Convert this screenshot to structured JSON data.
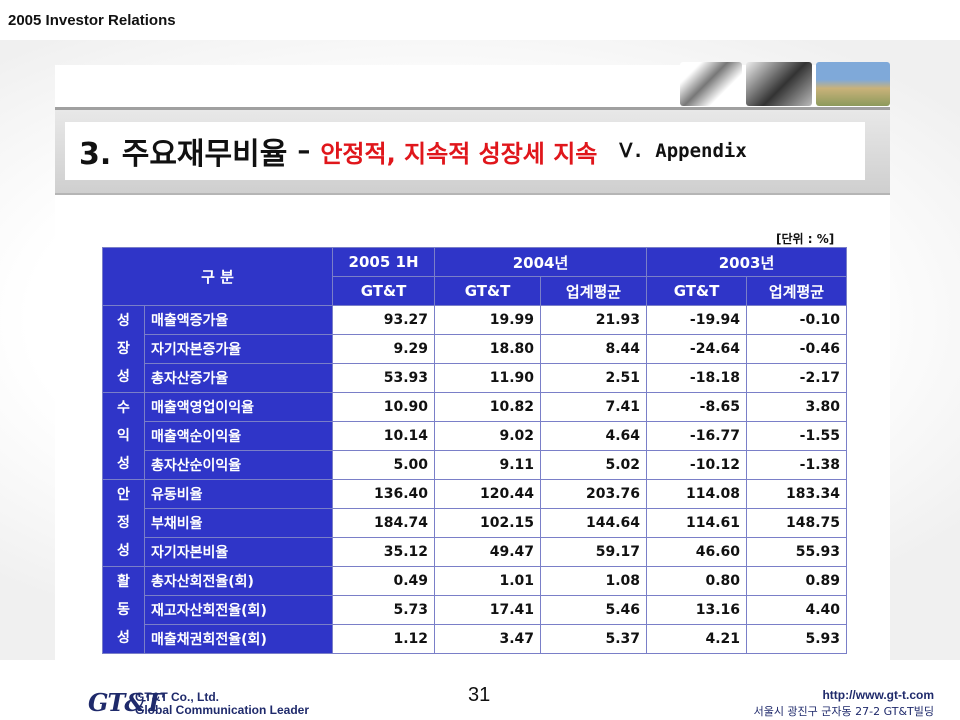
{
  "header": {
    "label": "2005 Investor Relations"
  },
  "title": {
    "main": "3. 주요재무비율",
    "dash": "–",
    "sub": "안정적, 지속적 성장세 지속",
    "appendix": "Ⅴ. Appendix"
  },
  "unit": "[단위 : %]",
  "table": {
    "header": {
      "division": "구   분",
      "periods": [
        "2005 1H",
        "2004년",
        "2003년"
      ],
      "sub_cols": [
        "GT&T",
        "GT&T",
        "업계평균",
        "GT&T",
        "업계평균"
      ]
    },
    "groups": [
      {
        "category": "성장성",
        "rows": [
          {
            "item": "매출액증가율",
            "values": [
              "93.27",
              "19.99",
              "21.93",
              "-19.94",
              "-0.10"
            ]
          },
          {
            "item": "자기자본증가율",
            "values": [
              "9.29",
              "18.80",
              "8.44",
              "-24.64",
              "-0.46"
            ]
          },
          {
            "item": "총자산증가율",
            "values": [
              "53.93",
              "11.90",
              "2.51",
              "-18.18",
              "-2.17"
            ]
          }
        ]
      },
      {
        "category": "수익성",
        "rows": [
          {
            "item": "매출액영업이익율",
            "values": [
              "10.90",
              "10.82",
              "7.41",
              "-8.65",
              "3.80"
            ]
          },
          {
            "item": "매출액순이익율",
            "values": [
              "10.14",
              "9.02",
              "4.64",
              "-16.77",
              "-1.55"
            ]
          },
          {
            "item": "총자산순이익율",
            "values": [
              "5.00",
              "9.11",
              "5.02",
              "-10.12",
              "-1.38"
            ]
          }
        ]
      },
      {
        "category": "안정성",
        "rows": [
          {
            "item": "유동비율",
            "values": [
              "136.40",
              "120.44",
              "203.76",
              "114.08",
              "183.34"
            ]
          },
          {
            "item": "부채비율",
            "values": [
              "184.74",
              "102.15",
              "144.64",
              "114.61",
              "148.75"
            ]
          },
          {
            "item": "자기자본비율",
            "values": [
              "35.12",
              "49.47",
              "59.17",
              "46.60",
              "55.93"
            ]
          }
        ]
      },
      {
        "category": "활동성",
        "rows": [
          {
            "item": "총자산회전율(회)",
            "values": [
              "0.49",
              "1.01",
              "1.08",
              "0.80",
              "0.89"
            ]
          },
          {
            "item": "재고자산회전율(회)",
            "values": [
              "5.73",
              "17.41",
              "5.46",
              "13.16",
              "4.40"
            ]
          },
          {
            "item": "매출채권회전율(회)",
            "values": [
              "1.12",
              "3.47",
              "5.37",
              "4.21",
              "5.93"
            ]
          }
        ]
      }
    ]
  },
  "footer": {
    "logo": "GT&T",
    "company": "GT&T Co., Ltd.",
    "slogan": "Global Communication Leader",
    "page": "31",
    "url": "http://www.gt-t.com",
    "address": "서울시 광진구 군자동 27-2 GT&T빌딩"
  },
  "colors": {
    "table_blue": "#2f35c8",
    "header_yellow": "#ffe84a",
    "title_red": "#e0161b",
    "footer_navy": "#1f2a6b"
  }
}
